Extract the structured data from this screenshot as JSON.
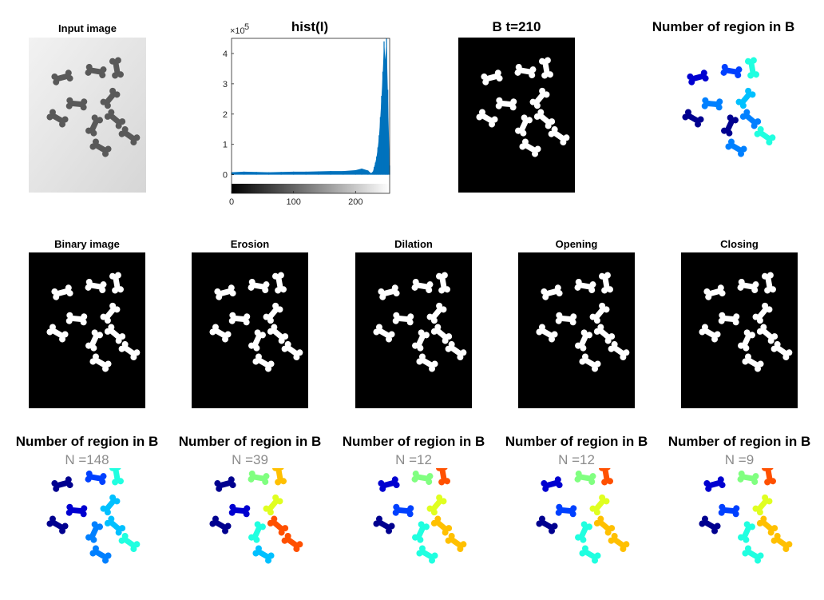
{
  "figure": {
    "row1": {
      "input_title": "Input image",
      "hist_title": "hist(I)",
      "binary_title": "B t=210",
      "region_title": "Number of region in B"
    },
    "row2": {
      "titles": [
        "Binary image",
        "Erosion",
        "Dilation",
        "Opening",
        "Closing"
      ]
    },
    "row3": {
      "titles": [
        "Number of region in B",
        "Number of region in B",
        "Number of region in B",
        "Number of region in B",
        "Number of region in B"
      ],
      "counts": [
        "N =148",
        "N =39",
        "N =12",
        "N =12",
        "N =9"
      ]
    },
    "colors": {
      "hist_bar": "#0072bd",
      "binary_bg": "#000000",
      "object": "#ffffff",
      "label_palette": [
        "#00008f",
        "#0000d0",
        "#0040ff",
        "#0080ff",
        "#00c0ff",
        "#20ffe0",
        "#80ff80",
        "#e0ff20",
        "#ffc000",
        "#ff5000"
      ]
    }
  },
  "chart_data": {
    "type": "bar",
    "title": "hist(I)",
    "xlabel": "",
    "ylabel": "",
    "y_exponent_label": "×10",
    "y_exponent_power": "5",
    "xlim": [
      0,
      255
    ],
    "ylim": [
      -0.3,
      4.5
    ],
    "xticks": [
      "0",
      "100",
      "200"
    ],
    "yticks": [
      "0",
      "1",
      "2",
      "3",
      "4"
    ],
    "colorbar": "gray",
    "x": [
      0,
      20,
      40,
      60,
      80,
      100,
      120,
      140,
      160,
      180,
      200,
      210,
      220,
      225,
      228,
      230,
      232,
      234,
      236,
      238,
      240,
      242,
      244,
      246,
      248,
      250,
      252,
      255
    ],
    "values": [
      0.08,
      0.1,
      0.09,
      0.08,
      0.09,
      0.1,
      0.1,
      0.11,
      0.12,
      0.12,
      0.15,
      0.2,
      0.14,
      0.05,
      0.1,
      0.25,
      0.4,
      0.6,
      0.9,
      1.3,
      1.9,
      2.6,
      3.4,
      4.4,
      3.8,
      4.5,
      2.8,
      0.3
    ]
  }
}
